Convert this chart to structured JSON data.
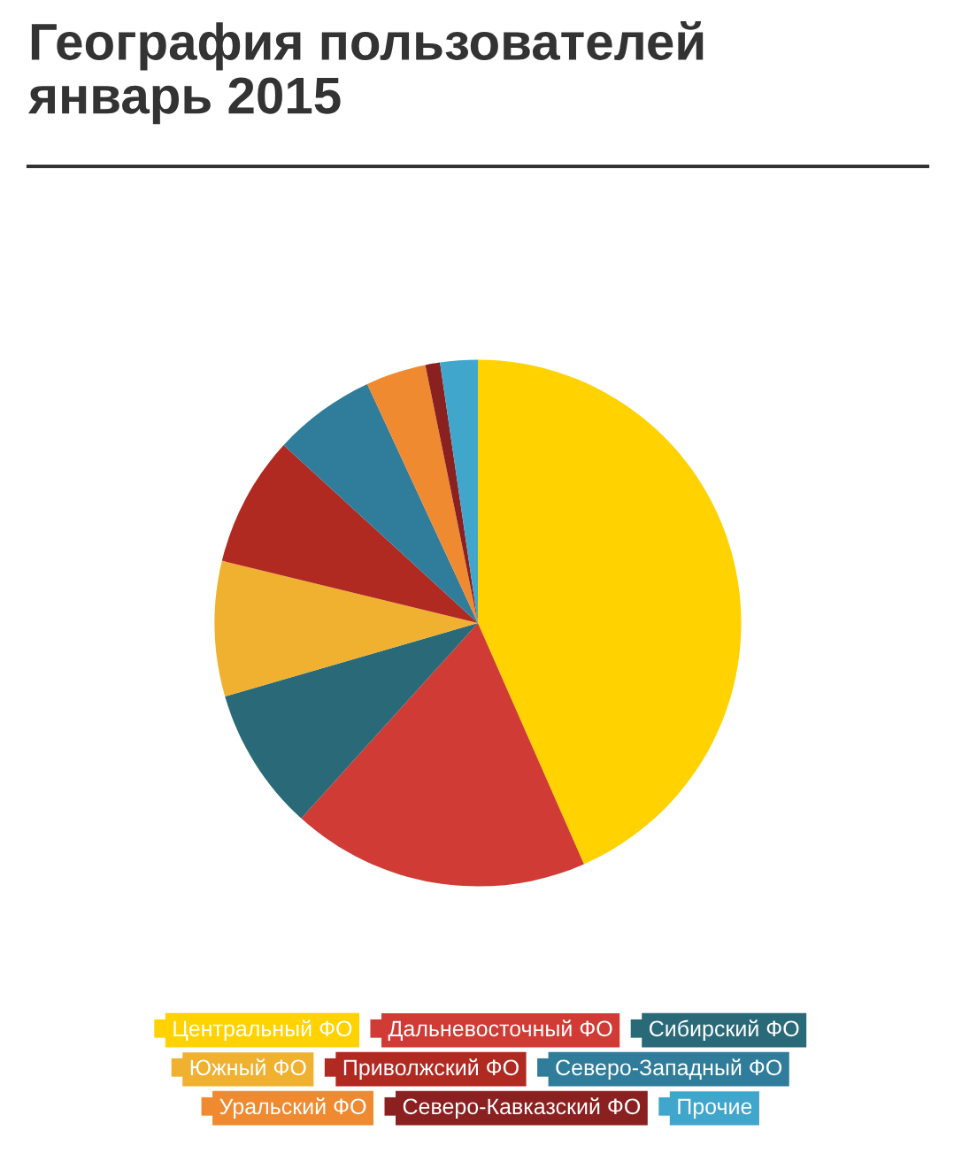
{
  "chart_data": {
    "type": "pie",
    "title": "География пользователей\nянварь 2015",
    "categories": [
      "Центральный ФО",
      "Дальневосточный ФО",
      "Сибирский ФО",
      "Южный ФО",
      "Приволжский ФО",
      "Северо-Западный ФО",
      "Уральский ФО",
      "Северо-Кавказский ФО",
      "Прочие"
    ],
    "values": [
      43.4,
      18.3,
      8.8,
      8.3,
      8.0,
      6.3,
      3.7,
      0.9,
      2.3
    ],
    "colors": [
      "#ffd200",
      "#d03b35",
      "#2a6a78",
      "#f0b030",
      "#b02a22",
      "#2f7d9a",
      "#f08a30",
      "#8a2020",
      "#40a6cc"
    ],
    "legend": "bottom"
  }
}
